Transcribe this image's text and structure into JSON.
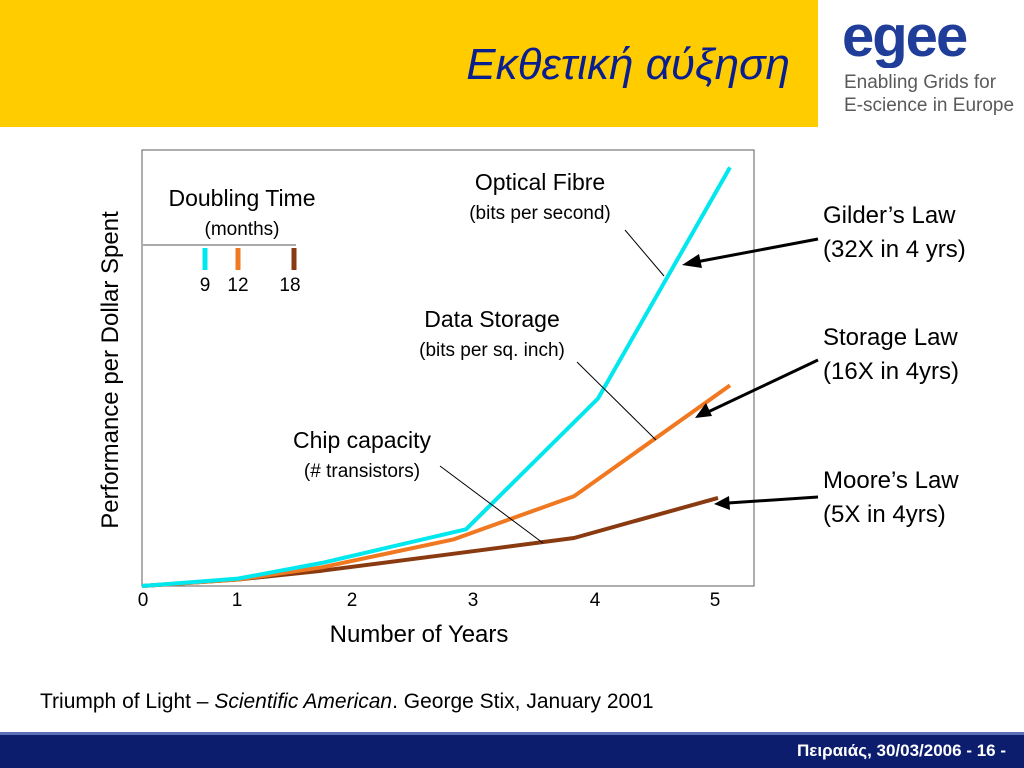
{
  "slide": {
    "title": "Εκθετική αύξηση",
    "logo": {
      "wordmark": "egee",
      "line1": "Enabling Grids for",
      "line2": "E-science in Europe"
    },
    "citation": {
      "part1": "Triumph of Light – ",
      "italic": "Scientific American",
      "part2": ". George Stix, January 2001"
    },
    "footer": "Πειραιάς, 30/03/2006   - 16 -",
    "colors": {
      "header": "#ffcc00",
      "title": "#0a1f8f",
      "footer_bar": "#0c1d6e"
    }
  },
  "chart_data": {
    "type": "line",
    "title": "",
    "xlabel": "Number of Years",
    "ylabel": "Performance per Dollar Spent",
    "xlim": [
      0,
      5.1
    ],
    "ylim": [
      0,
      100
    ],
    "x_ticks": [
      "0",
      "1",
      "2",
      "3",
      "4",
      "5"
    ],
    "grid": false,
    "series": [
      {
        "name": "Optical Fibre",
        "sub": "(bits per second)",
        "color": "#00e8ee",
        "points": [
          [
            0,
            0
          ],
          [
            0.8,
            1.7
          ],
          [
            1.5,
            5.3
          ],
          [
            2.7,
            13
          ],
          [
            3.8,
            43
          ],
          [
            4.9,
            96
          ]
        ],
        "law": [
          "Gilder’s Law",
          "(32X in 4 yrs)"
        ]
      },
      {
        "name": "Data Storage",
        "sub": "(bits per sq. inch)",
        "color": "#f07820",
        "points": [
          [
            0,
            0
          ],
          [
            0.8,
            1.5
          ],
          [
            1.5,
            4.3
          ],
          [
            2.6,
            10.7
          ],
          [
            3.6,
            20.6
          ],
          [
            4.9,
            46
          ]
        ],
        "law": [
          "Storage Law",
          "(16X in 4yrs)"
        ]
      },
      {
        "name": "Chip capacity",
        "sub": "(# transistors)",
        "color": "#8a3a10",
        "points": [
          [
            0,
            0
          ],
          [
            0.8,
            1.5
          ],
          [
            1.5,
            3.5
          ],
          [
            2.6,
            7.4
          ],
          [
            3.6,
            11
          ],
          [
            4.8,
            20.2
          ]
        ],
        "law": [
          "Moore’s Law",
          "(5X in 4yrs)"
        ]
      }
    ],
    "doubling_time": {
      "title": "Doubling Time",
      "sub": "(months)",
      "values": [
        "9",
        "12",
        "18"
      ]
    }
  }
}
